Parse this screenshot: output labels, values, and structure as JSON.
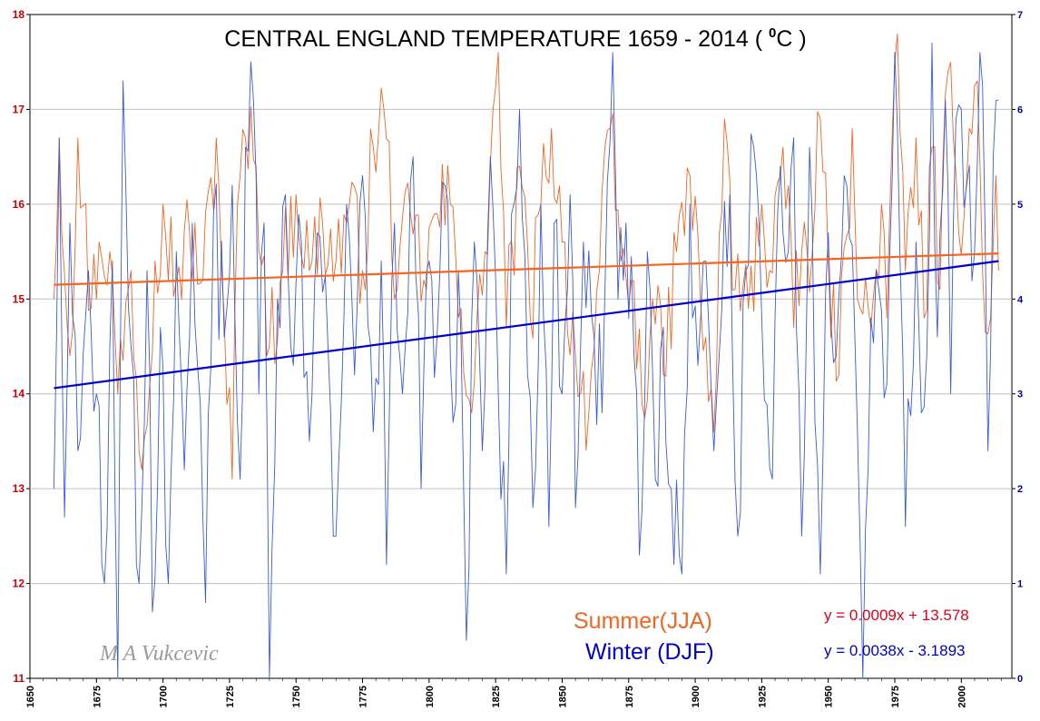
{
  "chart_data": {
    "type": "line",
    "title": "CENTRAL ENGLAND TEMPERATURE 1659 - 2014 ( ",
    "title_sup": "0",
    "title_tail": "C )",
    "x_ticks": [
      "1650",
      "1675",
      "1700",
      "1725",
      "1750",
      "1775",
      "1800",
      "1825",
      "1850",
      "1875",
      "1900",
      "1925",
      "1950",
      "1975",
      "2000"
    ],
    "xlim": [
      1650,
      2019
    ],
    "y_left_ticks": [
      "11",
      "12",
      "13",
      "14",
      "15",
      "16",
      "17",
      "18"
    ],
    "ylim_left": [
      11,
      18
    ],
    "y_right_ticks": [
      "0",
      "1",
      "2",
      "3",
      "4",
      "5",
      "6",
      "7"
    ],
    "ylim_right": [
      0,
      7
    ],
    "grid": true,
    "series": [
      {
        "name": "Summer(JJA)",
        "axis": "left",
        "color": "#f26522",
        "trend_color": "#f26522",
        "equation": "y = 0.0009x + 13.578",
        "equation_color": "#e0001b",
        "start_year": 1659,
        "end_year": 2014,
        "trend_start": 15.15,
        "trend_end": 15.48,
        "waypoints": [
          [
            1659,
            15.0
          ],
          [
            1661,
            16.7
          ],
          [
            1665,
            14.4
          ],
          [
            1668,
            16.7
          ],
          [
            1673,
            14.9
          ],
          [
            1676,
            15.6
          ],
          [
            1680,
            15.5
          ],
          [
            1683,
            14.0
          ],
          [
            1688,
            15.3
          ],
          [
            1692,
            13.2
          ],
          [
            1697,
            15.4
          ],
          [
            1700,
            16.0
          ],
          [
            1705,
            15.2
          ],
          [
            1710,
            15.7
          ],
          [
            1715,
            15.2
          ],
          [
            1720,
            16.7
          ],
          [
            1723,
            14.8
          ],
          [
            1726,
            13.1
          ],
          [
            1728,
            16.0
          ],
          [
            1731,
            16.7
          ],
          [
            1735,
            16.4
          ],
          [
            1740,
            14.5
          ],
          [
            1745,
            15.3
          ],
          [
            1750,
            16.1
          ],
          [
            1755,
            15.3
          ],
          [
            1760,
            15.8
          ],
          [
            1765,
            15.4
          ],
          [
            1770,
            16.0
          ],
          [
            1775,
            15.3
          ],
          [
            1779,
            16.6
          ],
          [
            1783,
            17.0
          ],
          [
            1788,
            15.1
          ],
          [
            1793,
            15.9
          ],
          [
            1798,
            15.2
          ],
          [
            1803,
            15.9
          ],
          [
            1808,
            16.0
          ],
          [
            1812,
            14.9
          ],
          [
            1816,
            13.8
          ],
          [
            1821,
            15.5
          ],
          [
            1826,
            17.6
          ],
          [
            1829,
            14.7
          ],
          [
            1834,
            16.4
          ],
          [
            1838,
            14.8
          ],
          [
            1842,
            16.0
          ],
          [
            1846,
            16.8
          ],
          [
            1850,
            15.6
          ],
          [
            1855,
            14.4
          ],
          [
            1860,
            13.8
          ],
          [
            1864,
            15.3
          ],
          [
            1868,
            16.8
          ],
          [
            1872,
            15.4
          ],
          [
            1876,
            15.2
          ],
          [
            1880,
            13.9
          ],
          [
            1884,
            15.0
          ],
          [
            1888,
            14.2
          ],
          [
            1893,
            15.5
          ],
          [
            1898,
            16.3
          ],
          [
            1902,
            15.0
          ],
          [
            1907,
            13.6
          ],
          [
            1911,
            16.9
          ],
          [
            1915,
            15.1
          ],
          [
            1920,
            14.9
          ],
          [
            1925,
            16.0
          ],
          [
            1928,
            15.3
          ],
          [
            1933,
            16.6
          ],
          [
            1937,
            14.7
          ],
          [
            1940,
            15.5
          ],
          [
            1944,
            15.5
          ],
          [
            1947,
            16.9
          ],
          [
            1950,
            15.4
          ],
          [
            1954,
            14.2
          ],
          [
            1959,
            16.8
          ],
          [
            1962,
            14.9
          ],
          [
            1966,
            14.7
          ],
          [
            1970,
            16.0
          ],
          [
            1972,
            14.8
          ],
          [
            1976,
            17.8
          ],
          [
            1979,
            15.3
          ],
          [
            1983,
            16.7
          ],
          [
            1986,
            14.8
          ],
          [
            1989,
            16.6
          ],
          [
            1992,
            15.1
          ],
          [
            1995,
            17.4
          ],
          [
            1999,
            15.7
          ],
          [
            2003,
            16.8
          ],
          [
            2006,
            17.3
          ],
          [
            2008,
            15.3
          ],
          [
            2011,
            14.8
          ],
          [
            2013,
            16.3
          ],
          [
            2014,
            15.3
          ]
        ]
      },
      {
        "name": "Winter (DJF)",
        "axis": "right",
        "color": "#3a5bd9",
        "trend_color": "#0000cc",
        "equation": "y = 0.0038x - 3.1893",
        "equation_color": "#0000cc",
        "start_year": 1659,
        "end_year": 2014,
        "trend_start": 3.06,
        "trend_end": 4.4,
        "waypoints": [
          [
            1659,
            2.0
          ],
          [
            1661,
            5.7
          ],
          [
            1663,
            1.7
          ],
          [
            1665,
            4.8
          ],
          [
            1668,
            2.4
          ],
          [
            1672,
            4.3
          ],
          [
            1675,
            3.0
          ],
          [
            1678,
            1.0
          ],
          [
            1681,
            4.4
          ],
          [
            1683,
            0.0
          ],
          [
            1685,
            6.3
          ],
          [
            1688,
            3.5
          ],
          [
            1691,
            1.0
          ],
          [
            1694,
            4.3
          ],
          [
            1696,
            0.7
          ],
          [
            1699,
            3.7
          ],
          [
            1702,
            1.0
          ],
          [
            1705,
            4.5
          ],
          [
            1708,
            2.2
          ],
          [
            1711,
            4.8
          ],
          [
            1714,
            2.9
          ],
          [
            1716,
            0.8
          ],
          [
            1719,
            4.9
          ],
          [
            1723,
            3.6
          ],
          [
            1726,
            5.2
          ],
          [
            1729,
            2.1
          ],
          [
            1731,
            5.6
          ],
          [
            1734,
            6.1
          ],
          [
            1736,
            3.0
          ],
          [
            1738,
            4.8
          ],
          [
            1740,
            0.0
          ],
          [
            1743,
            4.0
          ],
          [
            1746,
            5.1
          ],
          [
            1749,
            3.3
          ],
          [
            1752,
            4.6
          ],
          [
            1755,
            2.5
          ],
          [
            1758,
            4.7
          ],
          [
            1762,
            3.5
          ],
          [
            1765,
            1.5
          ],
          [
            1769,
            5.0
          ],
          [
            1772,
            3.2
          ],
          [
            1775,
            5.3
          ],
          [
            1779,
            2.6
          ],
          [
            1782,
            4.4
          ],
          [
            1784,
            1.2
          ],
          [
            1787,
            4.8
          ],
          [
            1790,
            3.0
          ],
          [
            1794,
            5.5
          ],
          [
            1797,
            2.0
          ],
          [
            1800,
            4.4
          ],
          [
            1803,
            3.6
          ],
          [
            1806,
            5.2
          ],
          [
            1809,
            2.7
          ],
          [
            1811,
            4.3
          ],
          [
            1814,
            0.4
          ],
          [
            1817,
            4.6
          ],
          [
            1820,
            2.4
          ],
          [
            1823,
            5.5
          ],
          [
            1826,
            3.0
          ],
          [
            1829,
            1.1
          ],
          [
            1831,
            4.9
          ],
          [
            1834,
            6.0
          ],
          [
            1837,
            3.2
          ],
          [
            1839,
            1.8
          ],
          [
            1842,
            5.0
          ],
          [
            1845,
            1.6
          ],
          [
            1847,
            4.8
          ],
          [
            1850,
            3.0
          ],
          [
            1853,
            5.1
          ],
          [
            1855,
            1.8
          ],
          [
            1858,
            4.6
          ],
          [
            1862,
            3.6
          ],
          [
            1865,
            2.8
          ],
          [
            1869,
            6.6
          ],
          [
            1871,
            4.0
          ],
          [
            1874,
            4.8
          ],
          [
            1877,
            3.4
          ],
          [
            1879,
            1.3
          ],
          [
            1882,
            4.5
          ],
          [
            1885,
            2.1
          ],
          [
            1888,
            3.7
          ],
          [
            1891,
            2.0
          ],
          [
            1895,
            1.1
          ],
          [
            1898,
            5.0
          ],
          [
            1901,
            3.3
          ],
          [
            1904,
            4.4
          ],
          [
            1907,
            2.4
          ],
          [
            1910,
            3.9
          ],
          [
            1913,
            5.1
          ],
          [
            1916,
            1.5
          ],
          [
            1919,
            4.3
          ],
          [
            1922,
            5.6
          ],
          [
            1925,
            3.8
          ],
          [
            1929,
            2.1
          ],
          [
            1932,
            5.4
          ],
          [
            1935,
            4.5
          ],
          [
            1937,
            5.7
          ],
          [
            1940,
            1.5
          ],
          [
            1943,
            5.6
          ],
          [
            1945,
            2.7
          ],
          [
            1947,
            1.1
          ],
          [
            1950,
            4.7
          ],
          [
            1953,
            3.4
          ],
          [
            1956,
            5.3
          ],
          [
            1960,
            3.6
          ],
          [
            1963,
            0.0
          ],
          [
            1966,
            3.8
          ],
          [
            1969,
            4.1
          ],
          [
            1972,
            3.1
          ],
          [
            1975,
            6.6
          ],
          [
            1977,
            4.4
          ],
          [
            1979,
            1.6
          ],
          [
            1983,
            4.6
          ],
          [
            1985,
            2.8
          ],
          [
            1987,
            3.4
          ],
          [
            1989,
            6.7
          ],
          [
            1991,
            3.6
          ],
          [
            1994,
            6.1
          ],
          [
            1996,
            3.0
          ],
          [
            1998,
            5.9
          ],
          [
            2000,
            6.0
          ],
          [
            2002,
            5.2
          ],
          [
            2005,
            4.5
          ],
          [
            2007,
            6.6
          ],
          [
            2009,
            4.6
          ],
          [
            2010,
            2.4
          ],
          [
            2012,
            5.5
          ],
          [
            2014,
            6.1
          ]
        ]
      }
    ],
    "watermark": "M A Vukcevic"
  }
}
